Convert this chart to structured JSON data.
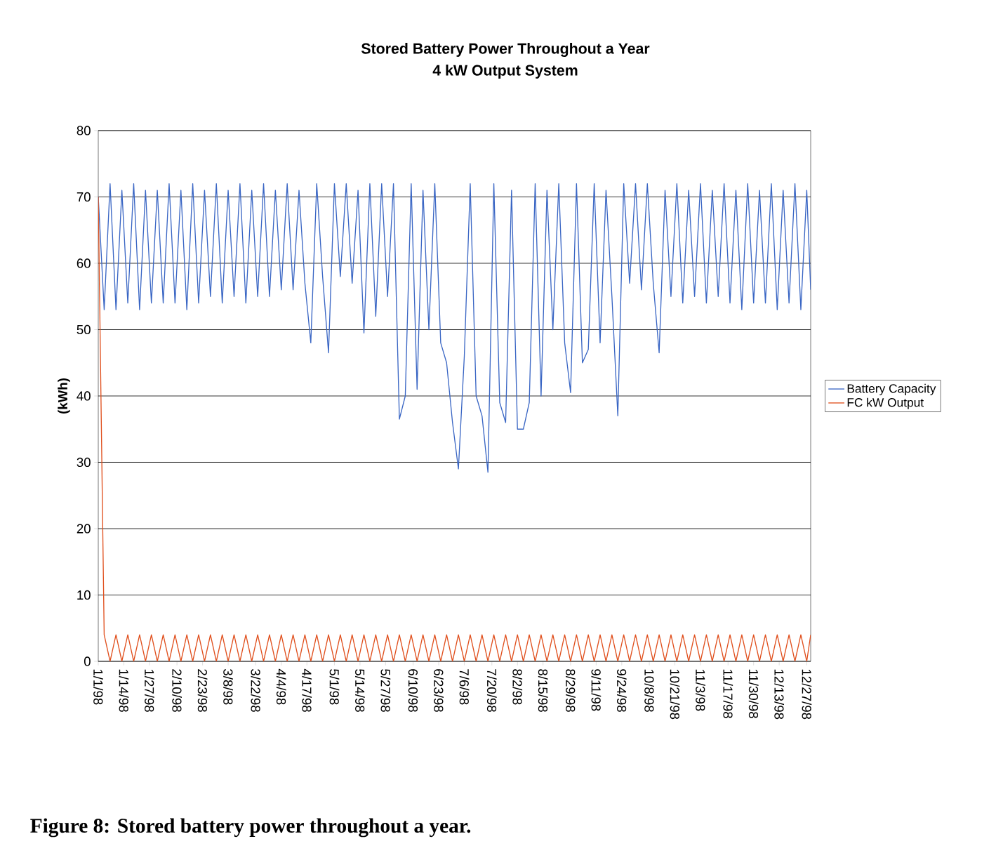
{
  "chart_data": {
    "type": "line",
    "title": "Stored Battery Power Throughout a Year",
    "subtitle": "4 kW Output System",
    "ylabel": "(kWh)",
    "annotations": [
      "**Figure 8:  Stored battery power throughout a year.**"
    ],
    "x": [
      "1998-01-01",
      "1998-01-04",
      "1998-01-07",
      "1998-01-10",
      "1998-01-13",
      "1998-01-16",
      "1998-01-19",
      "1998-01-22",
      "1998-01-25",
      "1998-01-28",
      "1998-01-31",
      "1998-02-03",
      "1998-02-06",
      "1998-02-09",
      "1998-02-12",
      "1998-02-15",
      "1998-02-18",
      "1998-02-21",
      "1998-02-24",
      "1998-02-27",
      "1998-03-02",
      "1998-03-05",
      "1998-03-08",
      "1998-03-11",
      "1998-03-14",
      "1998-03-17",
      "1998-03-20",
      "1998-03-23",
      "1998-03-26",
      "1998-03-29",
      "1998-04-01",
      "1998-04-04",
      "1998-04-07",
      "1998-04-10",
      "1998-04-13",
      "1998-04-16",
      "1998-04-19",
      "1998-04-22",
      "1998-04-25",
      "1998-04-28",
      "1998-05-01",
      "1998-05-04",
      "1998-05-07",
      "1998-05-10",
      "1998-05-13",
      "1998-05-16",
      "1998-05-19",
      "1998-05-22",
      "1998-05-25",
      "1998-05-28",
      "1998-05-31",
      "1998-06-03",
      "1998-06-06",
      "1998-06-09",
      "1998-06-12",
      "1998-06-15",
      "1998-06-18",
      "1998-06-21",
      "1998-06-24",
      "1998-06-27",
      "1998-06-30",
      "1998-07-03",
      "1998-07-06",
      "1998-07-09",
      "1998-07-12",
      "1998-07-15",
      "1998-07-18",
      "1998-07-21",
      "1998-07-24",
      "1998-07-27",
      "1998-07-30",
      "1998-08-02",
      "1998-08-05",
      "1998-08-08",
      "1998-08-11",
      "1998-08-14",
      "1998-08-17",
      "1998-08-20",
      "1998-08-23",
      "1998-08-26",
      "1998-08-29",
      "1998-09-01",
      "1998-09-04",
      "1998-09-07",
      "1998-09-10",
      "1998-09-13",
      "1998-09-16",
      "1998-09-19",
      "1998-09-22",
      "1998-09-25",
      "1998-09-28",
      "1998-10-01",
      "1998-10-04",
      "1998-10-07",
      "1998-10-10",
      "1998-10-13",
      "1998-10-16",
      "1998-10-19",
      "1998-10-22",
      "1998-10-25",
      "1998-10-28",
      "1998-10-31",
      "1998-11-03",
      "1998-11-06",
      "1998-11-09",
      "1998-11-12",
      "1998-11-15",
      "1998-11-18",
      "1998-11-21",
      "1998-11-24",
      "1998-11-27",
      "1998-11-30",
      "1998-12-03",
      "1998-12-06",
      "1998-12-09",
      "1998-12-12",
      "1998-12-15",
      "1998-12-18",
      "1998-12-21",
      "1998-12-24",
      "1998-12-27",
      "1998-12-29"
    ],
    "series": [
      {
        "name": "Battery Capacity",
        "color": "#3a66c4",
        "values": [
          70,
          53,
          72,
          53,
          71,
          54,
          72,
          53,
          71,
          54,
          71,
          54,
          72,
          54,
          71,
          53,
          72,
          54,
          71,
          55,
          72,
          54,
          71,
          55,
          72,
          54,
          71,
          55,
          72,
          55,
          71,
          56,
          72,
          56,
          71,
          57,
          48,
          72,
          58,
          46.5,
          72,
          58,
          72,
          57,
          71,
          49.5,
          72,
          52,
          72,
          55,
          72,
          36.5,
          40,
          72,
          41,
          71,
          50,
          72,
          48,
          45,
          36,
          29,
          46,
          72,
          40,
          37,
          28.5,
          72,
          39,
          36,
          71,
          35,
          35,
          39,
          72,
          40,
          71,
          50,
          72,
          48,
          40.5,
          72,
          45,
          47,
          72,
          48,
          71,
          55,
          37,
          72,
          57,
          72,
          56,
          72,
          57,
          46.5,
          71,
          55,
          72,
          54,
          71,
          55,
          72,
          54,
          71,
          55,
          72,
          54,
          71,
          53,
          72,
          54,
          71,
          54,
          72,
          53,
          71,
          54,
          72,
          53,
          71,
          56
        ]
      },
      {
        "name": "FC kW Output",
        "color": "#e0501e",
        "values": [
          70,
          4,
          0,
          4,
          0,
          4,
          0,
          4,
          0,
          4,
          0,
          4,
          0,
          4,
          0,
          4,
          0,
          4,
          0,
          4,
          0,
          4,
          0,
          4,
          0,
          4,
          0,
          4,
          0,
          4,
          0,
          4,
          0,
          4,
          0,
          4,
          0,
          4,
          0,
          4,
          0,
          4,
          0,
          4,
          0,
          4,
          0,
          4,
          0,
          4,
          0,
          4,
          0,
          4,
          0,
          4,
          0,
          4,
          0,
          4,
          0,
          4,
          0,
          4,
          0,
          4,
          0,
          4,
          0,
          4,
          0,
          4,
          0,
          4,
          0,
          4,
          0,
          4,
          0,
          4,
          0,
          4,
          0,
          4,
          0,
          4,
          0,
          4,
          0,
          4,
          0,
          4,
          0,
          4,
          0,
          4,
          0,
          4,
          0,
          4,
          0,
          4,
          0,
          4,
          0,
          4,
          0,
          4,
          0,
          4,
          0,
          4,
          0,
          4,
          0,
          4,
          0,
          4,
          0,
          4,
          0,
          4
        ]
      }
    ],
    "xlim": [
      "1998-01-01",
      "1998-12-29"
    ],
    "xticks": [
      {
        "value": "1998-01-01",
        "label": "1/1/98"
      },
      {
        "value": "1998-01-14",
        "label": "1/14/98"
      },
      {
        "value": "1998-01-27",
        "label": "1/27/98"
      },
      {
        "value": "1998-02-10",
        "label": "2/10/98"
      },
      {
        "value": "1998-02-23",
        "label": "2/23/98"
      },
      {
        "value": "1998-03-08",
        "label": "3/8/98"
      },
      {
        "value": "1998-03-22",
        "label": "3/22/98"
      },
      {
        "value": "1998-04-04",
        "label": "4/4/98"
      },
      {
        "value": "1998-04-17",
        "label": "4/17/98"
      },
      {
        "value": "1998-05-01",
        "label": "5/1/98"
      },
      {
        "value": "1998-05-14",
        "label": "5/14/98"
      },
      {
        "value": "1998-05-27",
        "label": "5/27/98"
      },
      {
        "value": "1998-06-10",
        "label": "6/10/98"
      },
      {
        "value": "1998-06-23",
        "label": "6/23/98"
      },
      {
        "value": "1998-07-06",
        "label": "7/6/98"
      },
      {
        "value": "1998-07-20",
        "label": "7/20/98"
      },
      {
        "value": "1998-08-02",
        "label": "8/2/98"
      },
      {
        "value": "1998-08-15",
        "label": "8/15/98"
      },
      {
        "value": "1998-08-29",
        "label": "8/29/98"
      },
      {
        "value": "1998-09-11",
        "label": "9/11/98"
      },
      {
        "value": "1998-09-24",
        "label": "9/24/98"
      },
      {
        "value": "1998-10-08",
        "label": "10/8/98"
      },
      {
        "value": "1998-10-21",
        "label": "10/21/98"
      },
      {
        "value": "1998-11-03",
        "label": "11/3/98"
      },
      {
        "value": "1998-11-17",
        "label": "11/17/98"
      },
      {
        "value": "1998-11-30",
        "label": "11/30/98"
      },
      {
        "value": "1998-12-13",
        "label": "12/13/98"
      },
      {
        "value": "1998-12-27",
        "label": "12/27/98"
      }
    ],
    "ylim": [
      0,
      80
    ],
    "yticks": [
      0,
      10,
      20,
      30,
      40,
      50,
      60,
      70,
      80
    ],
    "grid": "y",
    "legend": "right",
    "marker": "none",
    "line_style": "solid"
  }
}
